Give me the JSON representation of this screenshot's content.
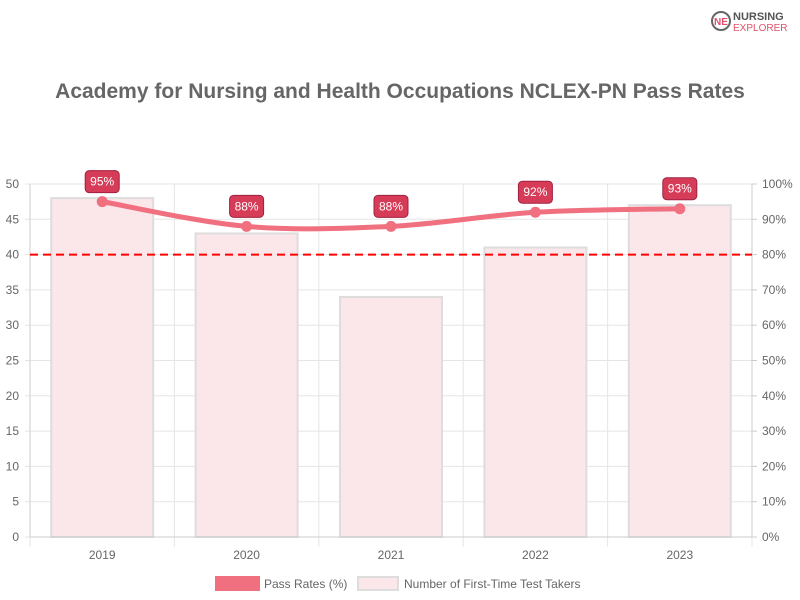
{
  "brand": {
    "line1": "NURSING",
    "line2": "EXPLORER"
  },
  "chart_data": {
    "type": "bar",
    "title": "Academy for Nursing and Health Occupations NCLEX-PN Pass Rates",
    "categories": [
      "2019",
      "2020",
      "2021",
      "2022",
      "2023"
    ],
    "series": [
      {
        "name": "Pass Rates (%)",
        "type": "line",
        "axis": "right",
        "values": [
          95,
          88,
          88,
          92,
          93
        ],
        "labels": [
          "95%",
          "88%",
          "88%",
          "92%",
          "93%"
        ],
        "color": "#f07080"
      },
      {
        "name": "Number of First-Time Test Takers",
        "type": "bar",
        "axis": "left",
        "values": [
          48,
          43,
          34,
          41,
          47
        ],
        "color": "#fbe6ea"
      }
    ],
    "left_axis": {
      "range": [
        0,
        50
      ],
      "ticks": [
        "0",
        "5",
        "10",
        "15",
        "20",
        "25",
        "30",
        "35",
        "40",
        "45",
        "50"
      ]
    },
    "right_axis": {
      "range": [
        0,
        100
      ],
      "ticks": [
        "0%",
        "10%",
        "20%",
        "30%",
        "40%",
        "50%",
        "60%",
        "70%",
        "80%",
        "90%",
        "100%"
      ]
    },
    "reference_line": {
      "value": 80,
      "axis": "right",
      "style": "dashed",
      "color": "#ff0000"
    },
    "grid": true,
    "legend": "bottom"
  }
}
